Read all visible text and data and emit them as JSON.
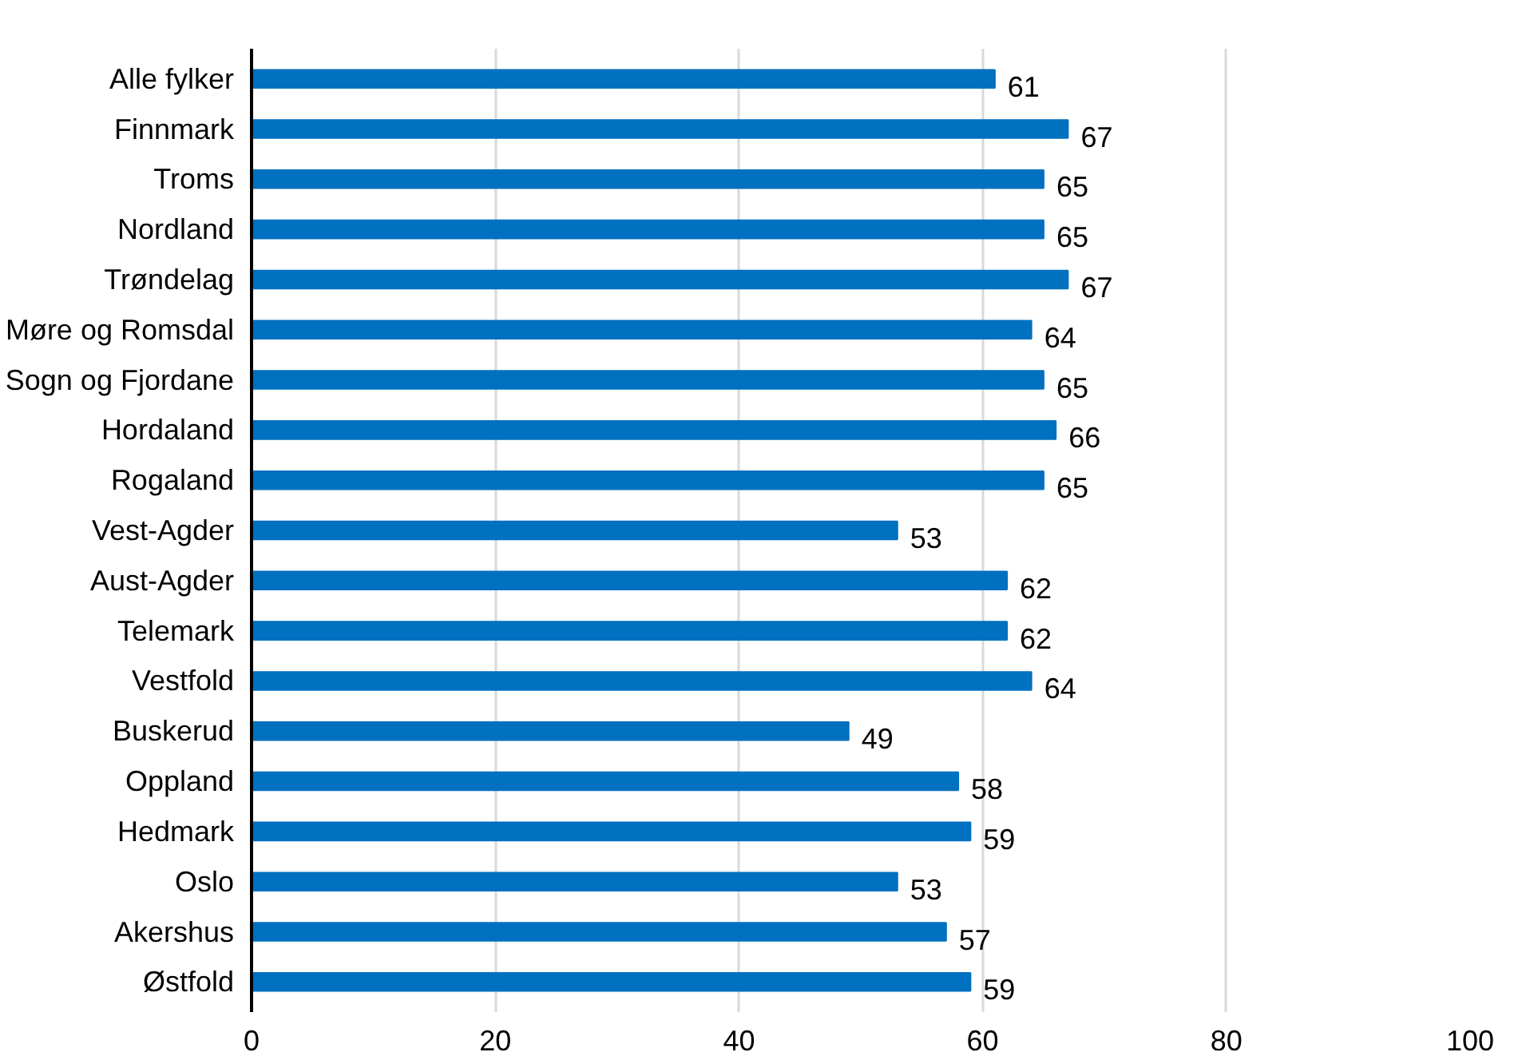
{
  "chart_data": {
    "type": "bar",
    "orientation": "horizontal",
    "categories": [
      "Alle fylker",
      "Finnmark",
      "Troms",
      "Nordland",
      "Trøndelag",
      "Møre og Romsdal",
      "Sogn og Fjordane",
      "Hordaland",
      "Rogaland",
      "Vest-Agder",
      "Aust-Agder",
      "Telemark",
      "Vestfold",
      "Buskerud",
      "Oppland",
      "Hedmark",
      "Oslo",
      "Akershus",
      "Østfold"
    ],
    "values": [
      61,
      67,
      65,
      65,
      67,
      64,
      65,
      66,
      65,
      53,
      62,
      62,
      64,
      49,
      58,
      59,
      53,
      57,
      59
    ],
    "color": "#0070c0",
    "xlim": [
      0,
      100
    ],
    "xticks": [
      0,
      20,
      40,
      60,
      80,
      100
    ],
    "grid": "x",
    "data_labels": true
  }
}
